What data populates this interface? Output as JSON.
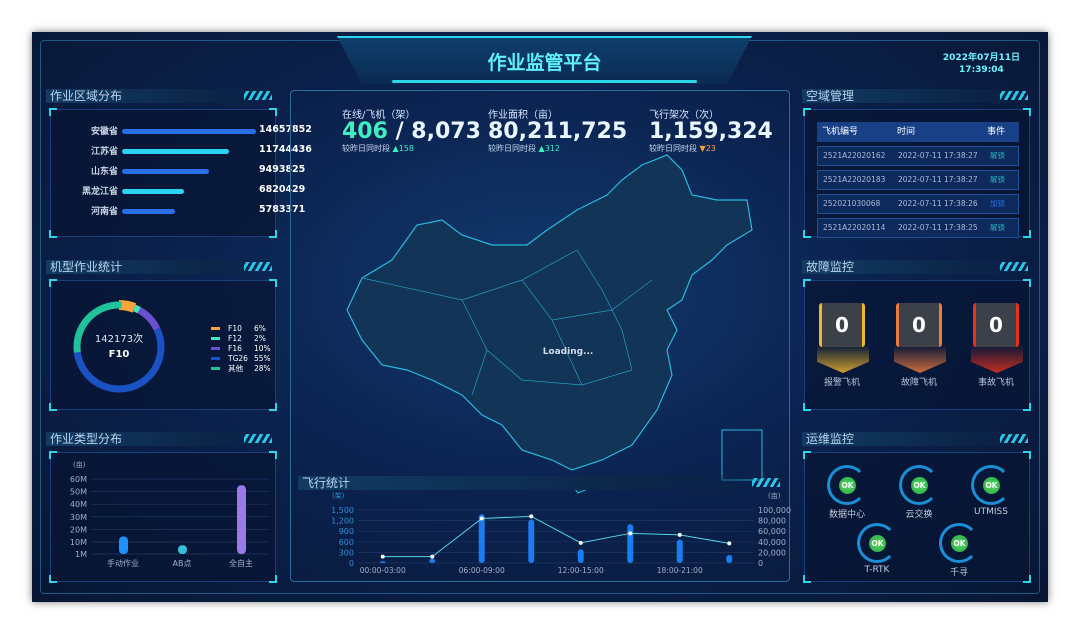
{
  "header": {
    "title": "作业监管平台",
    "date": "2022年07月11日",
    "time": "17:39:04"
  },
  "region": {
    "title": "作业区域分布",
    "items": [
      {
        "name": "安徽省",
        "value": 14657852,
        "label": "14657852",
        "color": "#2a6fe8"
      },
      {
        "name": "江苏省",
        "value": 11744436,
        "label": "11744436",
        "color": "#2bd3f0"
      },
      {
        "name": "山东省",
        "value": 9493825,
        "label": "9493825",
        "color": "#2a6fe8"
      },
      {
        "name": "黑龙江省",
        "value": 6820429,
        "label": "6820429",
        "color": "#2bd3f0"
      },
      {
        "name": "河南省",
        "value": 5783371,
        "label": "5783371",
        "color": "#2a6fe8"
      }
    ]
  },
  "model": {
    "title": "机型作业统计",
    "center_value": "142173次",
    "center_name": "F10",
    "items": [
      {
        "name": "F10",
        "pct": 6,
        "label": "6%",
        "color": "#f7a53b"
      },
      {
        "name": "F12",
        "pct": 2,
        "label": "2%",
        "color": "#3fe8c0"
      },
      {
        "name": "F16",
        "pct": 10,
        "label": "10%",
        "color": "#6a4fcf"
      },
      {
        "name": "TG26",
        "pct": 55,
        "label": "55%",
        "color": "#1a52c4"
      },
      {
        "name": "其他",
        "pct": 28,
        "label": "28%",
        "color": "#1fc29a"
      }
    ]
  },
  "chart_data": [
    {
      "type": "bar",
      "title": "作业类型分布",
      "ylabel": "(亩)",
      "y_ticks": [
        "60M",
        "50M",
        "40M",
        "30M",
        "20M",
        "10M",
        "1M"
      ],
      "categories": [
        "手动作业",
        "AB点",
        "全自主"
      ],
      "values": [
        14,
        7,
        55
      ],
      "unit": "M",
      "ylim": [
        0,
        60
      ]
    },
    {
      "type": "bar+line",
      "title": "飞行统计",
      "ylabel_left": "(架)",
      "ylabel_right": "(亩)",
      "y_left_ticks": [
        "1,500",
        "1,200",
        "900",
        "600",
        "300",
        "0"
      ],
      "y_right_ticks": [
        "100,000",
        "80,000",
        "60,000",
        "40,000",
        "20,000",
        "0"
      ],
      "x_tick_labels": [
        "00:00-03:00",
        "06:00-09:00",
        "12:00-15:00",
        "18:00-21:00"
      ],
      "bar_values": [
        50,
        120,
        1380,
        1230,
        390,
        1100,
        660,
        230
      ],
      "line_values": [
        12000,
        12000,
        84000,
        88000,
        38000,
        56000,
        53000,
        37000
      ],
      "ylim_left": [
        0,
        1500
      ],
      "ylim_right": [
        0,
        100000
      ]
    }
  ],
  "stats": [
    {
      "label": "在线/飞机（架）",
      "online": "406",
      "total": " / 8,073",
      "cmp": "较昨日同时段",
      "dir": "up",
      "delta": "158"
    },
    {
      "label": "作业面积（亩）",
      "value": "80,211,725",
      "cmp": "较昨日同时段",
      "dir": "up",
      "delta": "312"
    },
    {
      "label": "飞行架次（次）",
      "value": "1,159,324",
      "cmp": "较昨日同时段",
      "dir": "down",
      "delta": "23"
    }
  ],
  "map": {
    "loading": "Loading..."
  },
  "airspace": {
    "title": "空域管理",
    "headers": [
      "飞机编号",
      "时间",
      "事件"
    ],
    "rows": [
      {
        "id": "2521A22020162",
        "time": "2022-07-11 17:38:27",
        "event": "解锁"
      },
      {
        "id": "2521A22020183",
        "time": "2022-07-11 17:38:27",
        "event": "解锁"
      },
      {
        "id": "252021030068",
        "time": "2022-07-11 17:38:26",
        "event": "加锁"
      },
      {
        "id": "2521A22020114",
        "time": "2022-07-11 17:38:25",
        "event": "解锁"
      }
    ]
  },
  "fault": {
    "title": "故障监控",
    "items": [
      {
        "label": "报警飞机",
        "value": "0",
        "color": "#f0b62a"
      },
      {
        "label": "故障飞机",
        "value": "0",
        "color": "#f07a3a"
      },
      {
        "label": "事故飞机",
        "value": "0",
        "color": "#e8321e"
      }
    ]
  },
  "ops": {
    "title": "运维监控",
    "items": [
      {
        "label": "数据中心",
        "status": "OK"
      },
      {
        "label": "云交换",
        "status": "OK"
      },
      {
        "label": "UTMISS",
        "status": "OK"
      },
      {
        "label": "T-RTK",
        "status": "OK"
      },
      {
        "label": "千寻",
        "status": "OK"
      }
    ]
  }
}
